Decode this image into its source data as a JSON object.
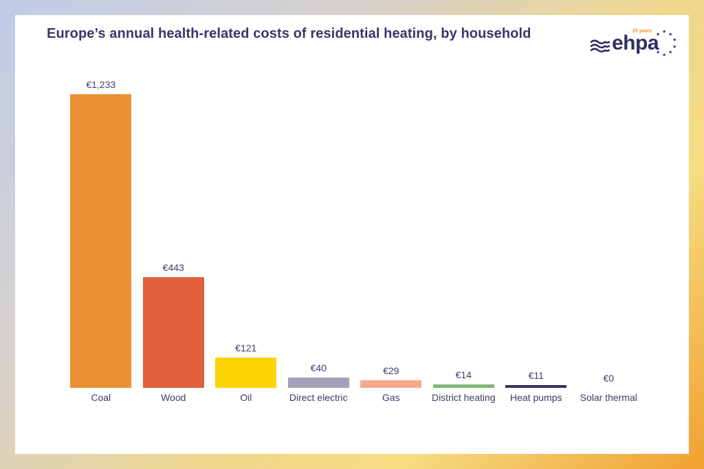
{
  "frame": {
    "gradient_colors": [
      "#c0cce9",
      "#d8d2cc",
      "#f6dc82",
      "#f0a02f"
    ],
    "card_background": "#ffffff"
  },
  "header": {
    "title": "Europe’s annual health-related costs of residential heating, by household",
    "title_color": "#3a3568"
  },
  "logo": {
    "name": "ehpa",
    "badge": "25 years",
    "text_color": "#2e3066",
    "accent_color": "#ef8f1f"
  },
  "chart_data": {
    "type": "bar",
    "title": "Europe’s annual health-related costs of residential heating, by household",
    "categories": [
      "Coal",
      "Wood",
      "Oil",
      "Direct electric",
      "Gas",
      "District heating",
      "Heat pumps",
      "Solar thermal"
    ],
    "values": [
      1233,
      443,
      121,
      40,
      29,
      14,
      11,
      0
    ],
    "value_labels": [
      "€1,233",
      "€443",
      "€121",
      "€40",
      "€29",
      "€14",
      "€11",
      "€0"
    ],
    "bar_colors": [
      "#ea9133",
      "#e1603c",
      "#fbd304",
      "#a3a0b9",
      "#f5a98d",
      "#7fb677",
      "#33315e",
      "#a3a0b9"
    ],
    "xlabel": "",
    "ylabel": "",
    "ylim": [
      0,
      1300
    ],
    "currency": "EUR",
    "grid": false,
    "legend": false,
    "label_color": "#3c3c6e"
  }
}
